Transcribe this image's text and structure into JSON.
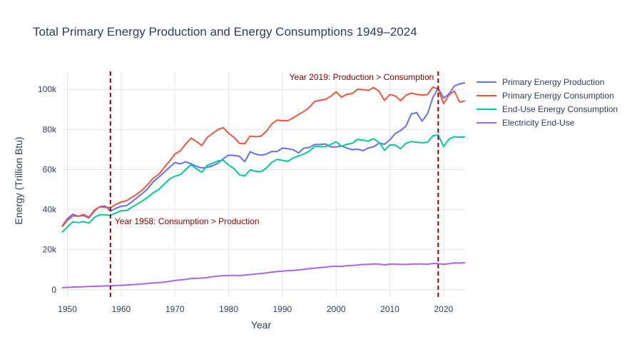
{
  "chart_data": {
    "type": "line",
    "title": "Total Primary Energy Production and Energy Consumptions 1949–2024",
    "xlabel": "Year",
    "ylabel": "Energy (Trillion Btu)",
    "xlim": [
      1949,
      2024
    ],
    "ylim": [
      -4000,
      109000
    ],
    "x_ticks": [
      1950,
      1960,
      1970,
      1980,
      1990,
      2000,
      2010,
      2020
    ],
    "x_tick_labels": [
      "1950",
      "1960",
      "1970",
      "1980",
      "1990",
      "2000",
      "2010",
      "2020"
    ],
    "y_ticks": [
      0,
      20000,
      40000,
      60000,
      80000,
      100000
    ],
    "y_tick_labels": [
      "0",
      "20k",
      "40k",
      "60k",
      "80k",
      "100k"
    ],
    "grid": true,
    "legend_position": "top-right",
    "x": [
      1949,
      1950,
      1951,
      1952,
      1953,
      1954,
      1955,
      1956,
      1957,
      1958,
      1959,
      1960,
      1961,
      1962,
      1963,
      1964,
      1965,
      1966,
      1967,
      1968,
      1969,
      1970,
      1971,
      1972,
      1973,
      1974,
      1975,
      1976,
      1977,
      1978,
      1979,
      1980,
      1981,
      1982,
      1983,
      1984,
      1985,
      1986,
      1987,
      1988,
      1989,
      1990,
      1991,
      1992,
      1993,
      1994,
      1995,
      1996,
      1997,
      1998,
      1999,
      2000,
      2001,
      2002,
      2003,
      2004,
      2005,
      2006,
      2007,
      2008,
      2009,
      2010,
      2011,
      2012,
      2013,
      2014,
      2015,
      2016,
      2017,
      2018,
      2019,
      2020,
      2021,
      2022,
      2023,
      2024
    ],
    "series": [
      {
        "name": "Primary Energy Production",
        "color": "#636efa",
        "values": [
          31700,
          35500,
          37700,
          36700,
          37000,
          35800,
          39200,
          41500,
          41800,
          39300,
          40600,
          41700,
          42000,
          43900,
          46100,
          48200,
          50600,
          54000,
          56200,
          58600,
          61200,
          63500,
          62800,
          63900,
          62900,
          61600,
          60800,
          61100,
          61800,
          63200,
          65400,
          67200,
          67000,
          66600,
          63900,
          68900,
          67700,
          67200,
          67700,
          69000,
          69000,
          70700,
          70400,
          69900,
          68300,
          70700,
          71000,
          72500,
          72500,
          72800,
          71300,
          71300,
          71700,
          70700,
          69900,
          70200,
          69400,
          70800,
          71400,
          73200,
          72600,
          74800,
          78000,
          79500,
          81700,
          87800,
          88400,
          84200,
          87800,
          96000,
          100500,
          95700,
          97700,
          101700,
          102800,
          103300
        ]
      },
      {
        "name": "Primary Energy Consumption",
        "color": "#ef553b",
        "values": [
          31400,
          34600,
          36900,
          36700,
          37600,
          36200,
          39700,
          41400,
          41200,
          41000,
          42600,
          43800,
          44400,
          46200,
          47800,
          50000,
          52700,
          55800,
          57600,
          61000,
          64200,
          67800,
          69300,
          72700,
          75700,
          74000,
          72000,
          76000,
          78000,
          80000,
          80900,
          78100,
          76100,
          73100,
          72900,
          76700,
          76400,
          76700,
          79000,
          82700,
          84700,
          84400,
          84400,
          85800,
          87500,
          89000,
          91000,
          94000,
          94600,
          95000,
          96600,
          98800,
          96100,
          97600,
          97900,
          100100,
          99900,
          99500,
          101000,
          99000,
          94500,
          97500,
          96800,
          94400,
          97100,
          98200,
          97500,
          97200,
          97400,
          101200,
          100200,
          92900,
          97300,
          99200,
          93600,
          94300
        ]
      },
      {
        "name": "End-Use Energy Consumption",
        "color": "#00cc96",
        "values": [
          28600,
          31400,
          33900,
          33500,
          34000,
          33200,
          36100,
          37500,
          37400,
          37100,
          38300,
          39400,
          39500,
          41200,
          42800,
          44400,
          46300,
          48500,
          50000,
          52700,
          55200,
          56700,
          57400,
          60000,
          62400,
          60400,
          58600,
          62100,
          63100,
          64300,
          64700,
          62200,
          60500,
          57400,
          56800,
          59800,
          59100,
          58900,
          60700,
          63500,
          65100,
          64600,
          64100,
          65800,
          66800,
          67800,
          69100,
          71500,
          71500,
          71400,
          72500,
          73900,
          71600,
          72600,
          73100,
          75100,
          74700,
          74200,
          75400,
          73600,
          69600,
          72300,
          72200,
          70400,
          73100,
          74000,
          73600,
          73400,
          73600,
          76900,
          77300,
          71500,
          75200,
          76400,
          76200,
          76300
        ]
      },
      {
        "name": "Electricity End-Use",
        "color": "#ab63fa",
        "values": [
          1000,
          1200,
          1300,
          1400,
          1500,
          1600,
          1700,
          1800,
          1900,
          2000,
          2100,
          2200,
          2300,
          2500,
          2700,
          2900,
          3200,
          3400,
          3600,
          3800,
          4200,
          4600,
          4900,
          5200,
          5600,
          5700,
          5800,
          6100,
          6500,
          6800,
          7000,
          7100,
          7200,
          7000,
          7300,
          7600,
          7800,
          8100,
          8400,
          8800,
          9100,
          9300,
          9500,
          9600,
          9900,
          10200,
          10500,
          10800,
          11000,
          11300,
          11600,
          11800,
          11600,
          12000,
          12100,
          12300,
          12600,
          12700,
          12900,
          12800,
          12400,
          12800,
          12800,
          12600,
          12700,
          12800,
          12800,
          12900,
          12700,
          13100,
          13000,
          12700,
          13000,
          13400,
          13300,
          13500
        ]
      }
    ],
    "annotations": [
      {
        "text": "Year 1958: Consumption > Production",
        "x": 1958
      },
      {
        "text": "Year 2019: Production > Consumption",
        "x": 2019
      }
    ],
    "vline_color": "#8b0000"
  }
}
